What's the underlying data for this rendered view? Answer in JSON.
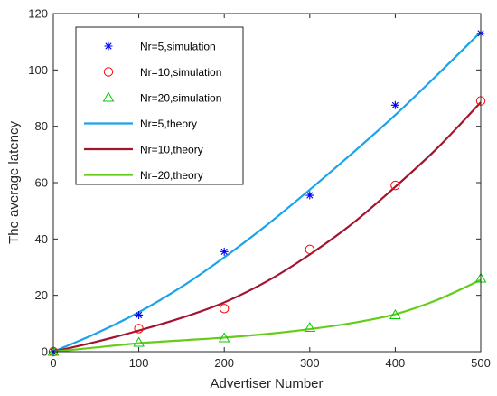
{
  "chart_data": {
    "type": "line",
    "title": "",
    "xlabel": "Advertiser Number",
    "ylabel": "The average latency",
    "xlim": [
      0,
      500
    ],
    "ylim": [
      0,
      120
    ],
    "xticks": [
      0,
      100,
      200,
      300,
      400,
      500
    ],
    "yticks": [
      0,
      20,
      40,
      60,
      80,
      100,
      120
    ],
    "grid": false,
    "legend_position": "top-left",
    "series": [
      {
        "name": "Nr=5,simulation",
        "kind": "marker",
        "marker": "asterisk",
        "color": "#0000ff",
        "x": [
          0,
          100,
          200,
          300,
          400,
          500
        ],
        "y": [
          0,
          13,
          35.5,
          55.5,
          87.5,
          113
        ]
      },
      {
        "name": "Nr=10,simulation",
        "kind": "marker",
        "marker": "circle",
        "color": "#ff0000",
        "x": [
          0,
          100,
          200,
          300,
          400,
          500
        ],
        "y": [
          0,
          8.2,
          15.3,
          36.3,
          59,
          89
        ]
      },
      {
        "name": "Nr=20,simulation",
        "kind": "marker",
        "marker": "triangle",
        "color": "#00cc00",
        "x": [
          0,
          100,
          200,
          300,
          400,
          500
        ],
        "y": [
          0,
          3.2,
          4.8,
          8.5,
          13,
          26
        ]
      },
      {
        "name": "Nr=5,theory",
        "kind": "line",
        "color": "#1aa3e8",
        "x": [
          0,
          50,
          100,
          150,
          200,
          250,
          300,
          350,
          400,
          450,
          500
        ],
        "y": [
          0,
          6.5,
          14,
          23,
          33.5,
          45,
          57.5,
          70.5,
          84,
          98.5,
          113.5
        ]
      },
      {
        "name": "Nr=10,theory",
        "kind": "line",
        "color": "#a2142f",
        "x": [
          0,
          50,
          100,
          150,
          200,
          250,
          300,
          350,
          400,
          450,
          500
        ],
        "y": [
          0,
          3.5,
          7.5,
          12,
          17.5,
          25,
          34.5,
          45.5,
          58.5,
          72.5,
          88.5
        ]
      },
      {
        "name": "Nr=20,theory",
        "kind": "line",
        "color": "#66cc1a",
        "x": [
          0,
          50,
          100,
          150,
          200,
          250,
          300,
          350,
          400,
          450,
          500
        ],
        "y": [
          0,
          1.5,
          3,
          4,
          5,
          6.3,
          8,
          10.2,
          13.3,
          18.5,
          25.5
        ]
      }
    ]
  }
}
